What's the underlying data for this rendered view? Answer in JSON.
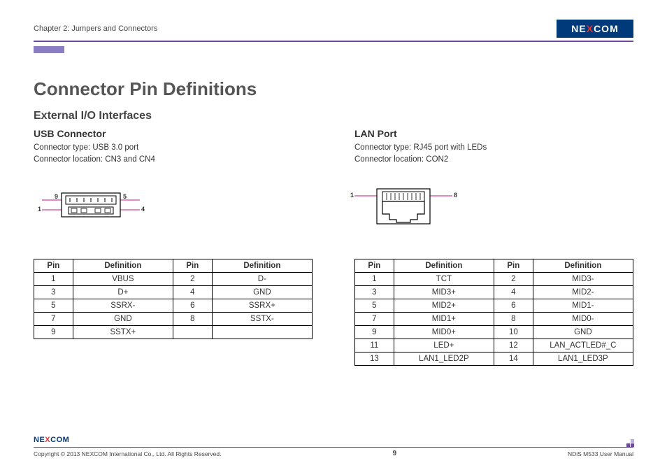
{
  "header": {
    "chapter": "Chapter 2: Jumpers and Connectors",
    "logo_text_pre": "NE",
    "logo_text_x": "X",
    "logo_text_post": "COM",
    "logo_bg": "#003a7a",
    "logo_x_color": "#e03030",
    "rule_color": "#6b4a9c",
    "tab_color": "#8a7cc5"
  },
  "titles": {
    "main": "Connector Pin Definitions",
    "subsection": "External I/O Interfaces"
  },
  "usb": {
    "title": "USB Connector",
    "type_line": "Connector type: USB 3.0 port",
    "loc_line": "Connector location: CN3 and CN4",
    "diagram": {
      "pin_labels": {
        "tl": "9",
        "tr": "5",
        "bl": "1",
        "br": "4"
      },
      "pink_color": "#d566a8"
    },
    "table": {
      "headers": [
        "Pin",
        "Definition",
        "Pin",
        "Definition"
      ],
      "rows": [
        [
          "1",
          "VBUS",
          "2",
          "D-"
        ],
        [
          "3",
          "D+",
          "4",
          "GND"
        ],
        [
          "5",
          "SSRX-",
          "6",
          "SSRX+"
        ],
        [
          "7",
          "GND",
          "8",
          "SSTX-"
        ],
        [
          "9",
          "SSTX+",
          "",
          ""
        ]
      ]
    }
  },
  "lan": {
    "title": "LAN Port",
    "type_line": "Connector type: RJ45 port with LEDs",
    "loc_line": "Connector location: CON2",
    "diagram": {
      "pin_labels": {
        "l": "1",
        "r": "8"
      },
      "pink_color": "#d566a8"
    },
    "table": {
      "headers": [
        "Pin",
        "Definition",
        "Pin",
        "Definition"
      ],
      "rows": [
        [
          "1",
          "TCT",
          "2",
          "MID3-"
        ],
        [
          "3",
          "MID3+",
          "4",
          "MID2-"
        ],
        [
          "5",
          "MID2+",
          "6",
          "MID1-"
        ],
        [
          "7",
          "MID1+",
          "8",
          "MID0-"
        ],
        [
          "9",
          "MID0+",
          "10",
          "GND"
        ],
        [
          "11",
          "LED+",
          "12",
          "LAN_ACTLED#_C"
        ],
        [
          "13",
          "LAN1_LED2P",
          "14",
          "LAN1_LED3P"
        ]
      ]
    }
  },
  "footer": {
    "copyright": "Copyright © 2013 NEXCOM International Co., Ltd. All Rights Reserved.",
    "page": "9",
    "manual": "NDiS M533 User Manual"
  },
  "style": {
    "table_border_color": "#000000",
    "body_font": "Segoe UI, Arial, sans-serif"
  }
}
